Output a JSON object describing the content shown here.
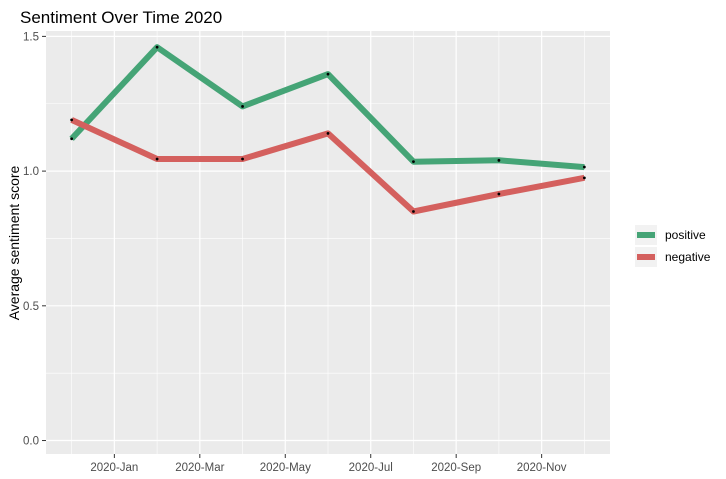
{
  "chart_data": {
    "type": "line",
    "title": "Sentiment Over Time 2020",
    "xlabel": "",
    "ylabel": "Average sentiment score",
    "x": [
      "2019-12",
      "2020-02",
      "2020-04",
      "2020-06",
      "2020-08",
      "2020-10",
      "2020-12"
    ],
    "x_tick_labels": [
      "2020-Jan",
      "2020-Mar",
      "2020-May",
      "2020-Jul",
      "2020-Sep",
      "2020-Nov"
    ],
    "y_ticks": [
      "0.0",
      "0.5",
      "1.0",
      "1.5"
    ],
    "ylim": [
      -0.05,
      1.52
    ],
    "grid": true,
    "legend_position": "right",
    "series": [
      {
        "name": "positive",
        "color": "#45a476",
        "values": [
          1.12,
          1.46,
          1.24,
          1.36,
          1.035,
          1.04,
          1.015
        ]
      },
      {
        "name": "negative",
        "color": "#d4605e",
        "values": [
          1.19,
          1.045,
          1.045,
          1.14,
          0.85,
          0.915,
          0.975
        ]
      }
    ]
  }
}
